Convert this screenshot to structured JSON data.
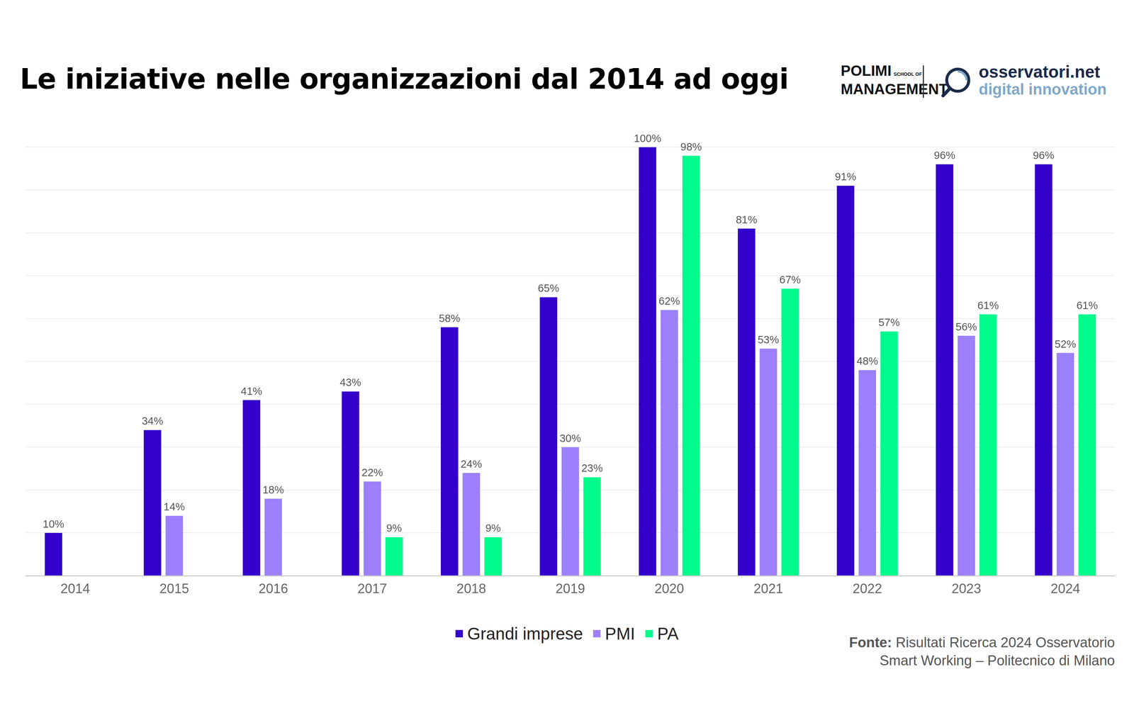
{
  "chart_data": {
    "type": "bar",
    "title": "Le iniziative nelle organizzazioni dal 2014 ad oggi",
    "annotations": [
      "POLIMI",
      "SCHOOL OF",
      "MANAGEMENT",
      "osservatori.net",
      "digital innovation",
      "Fonte:",
      "Risultati Ricerca 2024 Osservatorio",
      "Smart Working – Politecnico di Milano"
    ],
    "categories": [
      "2014",
      "2015",
      "2016",
      "2017",
      "2018",
      "2019",
      "2020",
      "2021",
      "2022",
      "2023",
      "2024"
    ],
    "series": [
      {
        "name": "Grandi imprese",
        "color": "#3300cc",
        "values": [
          10,
          34,
          41,
          43,
          58,
          65,
          100,
          81,
          91,
          96,
          96
        ],
        "value_labels": [
          "10%",
          "34%",
          "41%",
          "43%",
          "58%",
          "65%",
          "100%",
          "81%",
          "91%",
          "96%",
          "96%"
        ]
      },
      {
        "name": "PMI",
        "color": "#9b80fa",
        "values": [
          null,
          14,
          18,
          22,
          24,
          30,
          62,
          53,
          48,
          56,
          52
        ],
        "value_labels": [
          null,
          "14%",
          "18%",
          "22%",
          "24%",
          "30%",
          "62%",
          "53%",
          "48%",
          "56%",
          "52%"
        ]
      },
      {
        "name": "PA",
        "color": "#00fa8c",
        "values": [
          null,
          null,
          null,
          9,
          9,
          23,
          98,
          67,
          57,
          61,
          61
        ],
        "value_labels": [
          null,
          null,
          null,
          "9%",
          "9%",
          "23%",
          "98%",
          "67%",
          "57%",
          "61%",
          "61%"
        ]
      }
    ],
    "ylim": [
      0,
      100
    ],
    "yticks": [
      0,
      10,
      20,
      30,
      40,
      50,
      60,
      70,
      80,
      90,
      100
    ],
    "grid": true,
    "legend": "bottom",
    "data_labels": true,
    "tick_labels": "x"
  }
}
